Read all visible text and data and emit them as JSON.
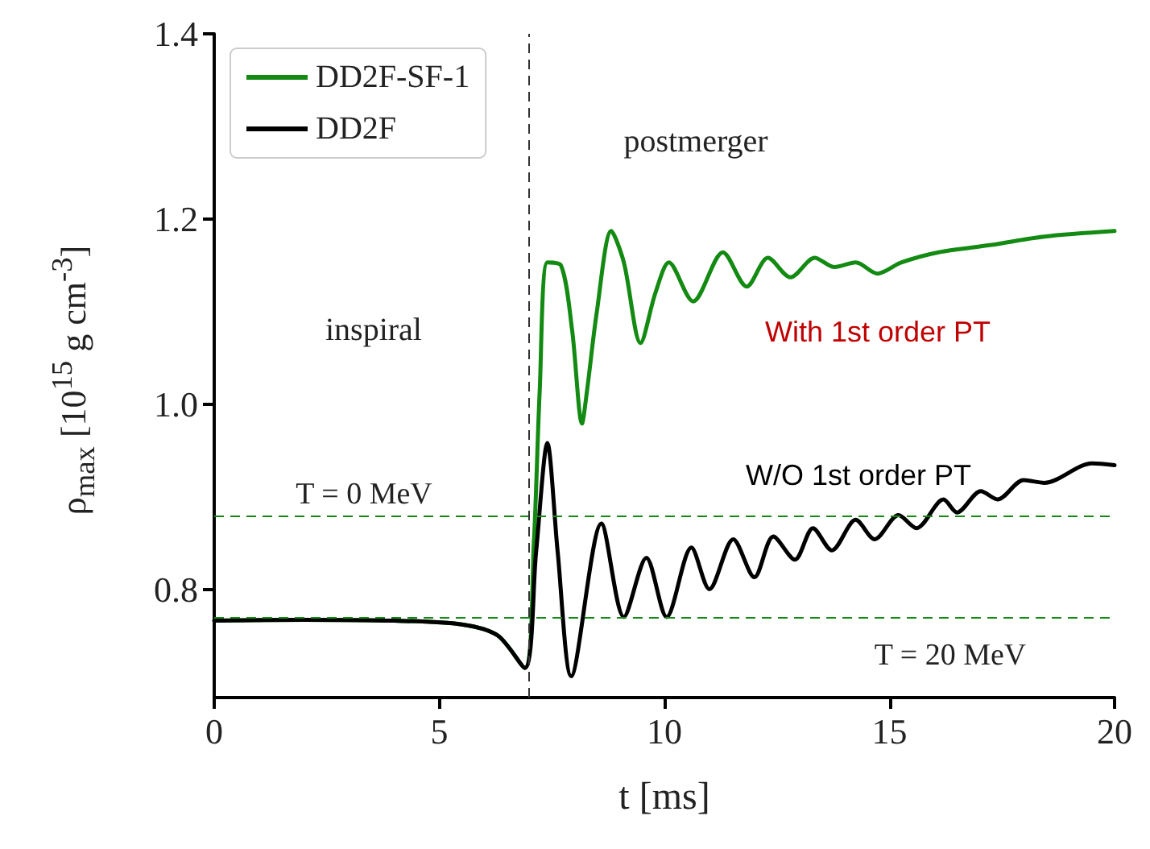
{
  "chart_data": {
    "type": "line",
    "xlabel": "t [ms]",
    "ylabel": "ρ$_{max}$ [10$^{15}$ g cm$^{-3}$]",
    "xlim": [
      0,
      20
    ],
    "xticks": [
      0,
      5,
      10,
      15,
      20
    ],
    "ylim": [
      0.683,
      1.4
    ],
    "yticks": [
      0.8,
      {
        "value": 1,
        "label": "1.0"
      },
      1.2,
      1.4
    ],
    "legend": "top left",
    "grid": false,
    "marker": "none",
    "line_style": "solid",
    "series": [
      {
        "name": "DD2F-SF-1",
        "color": "#138a12",
        "x": [
          0,
          2,
          4,
          5.5,
          6.3,
          6.9,
          7.1,
          7.23,
          7.4,
          7.7,
          7.95,
          8.17,
          8.28,
          8.5,
          8.82,
          9.1,
          9.47,
          9.8,
          10.1,
          10.64,
          11.3,
          11.83,
          12.3,
          12.8,
          13.34,
          13.78,
          14.25,
          14.73,
          15.26,
          16.09,
          17.27,
          18.44,
          20
        ],
        "values": [
          0.766,
          0.767,
          0.766,
          0.762,
          0.75,
          0.715,
          0.85,
          1.014,
          1.153,
          1.15,
          1.08,
          0.979,
          1.014,
          1.1,
          1.187,
          1.153,
          1.066,
          1.12,
          1.153,
          1.111,
          1.164,
          1.127,
          1.158,
          1.137,
          1.158,
          1.148,
          1.153,
          1.141,
          1.153,
          1.164,
          1.172,
          1.181,
          1.187
        ]
      },
      {
        "name": "DD2F",
        "color": "#000000",
        "x": [
          0,
          2,
          4,
          5.5,
          6.3,
          6.9,
          7.15,
          7.4,
          7.63,
          7.93,
          8.6,
          9.1,
          9.6,
          10.05,
          10.6,
          11.0,
          11.53,
          12.0,
          12.42,
          12.9,
          13.3,
          13.72,
          14.25,
          14.67,
          15.2,
          15.6,
          16.2,
          16.5,
          17.03,
          17.4,
          17.98,
          18.44,
          19.5,
          20
        ],
        "values": [
          0.766,
          0.767,
          0.766,
          0.762,
          0.75,
          0.715,
          0.84,
          0.958,
          0.84,
          0.706,
          0.871,
          0.77,
          0.834,
          0.77,
          0.845,
          0.8,
          0.854,
          0.813,
          0.857,
          0.832,
          0.866,
          0.842,
          0.875,
          0.854,
          0.88,
          0.866,
          0.897,
          0.883,
          0.906,
          0.897,
          0.918,
          0.915,
          0.936,
          0.934
        ]
      }
    ],
    "ref_lines": [
      {
        "axis": "y",
        "value": 0.88,
        "color": "#138a12",
        "line_style": "dashed"
      },
      {
        "axis": "y",
        "value": 0.77,
        "color": "#138a12",
        "line_style": "dashed"
      },
      {
        "axis": "x",
        "value": 7,
        "color": "#333333",
        "line_style": "dashed"
      }
    ],
    "annotations": [
      "inspiral",
      "postmerger",
      "With 1st order PT",
      "W/O 1st order PT",
      "T = 0 MeV",
      "T = 20 MeV"
    ]
  }
}
